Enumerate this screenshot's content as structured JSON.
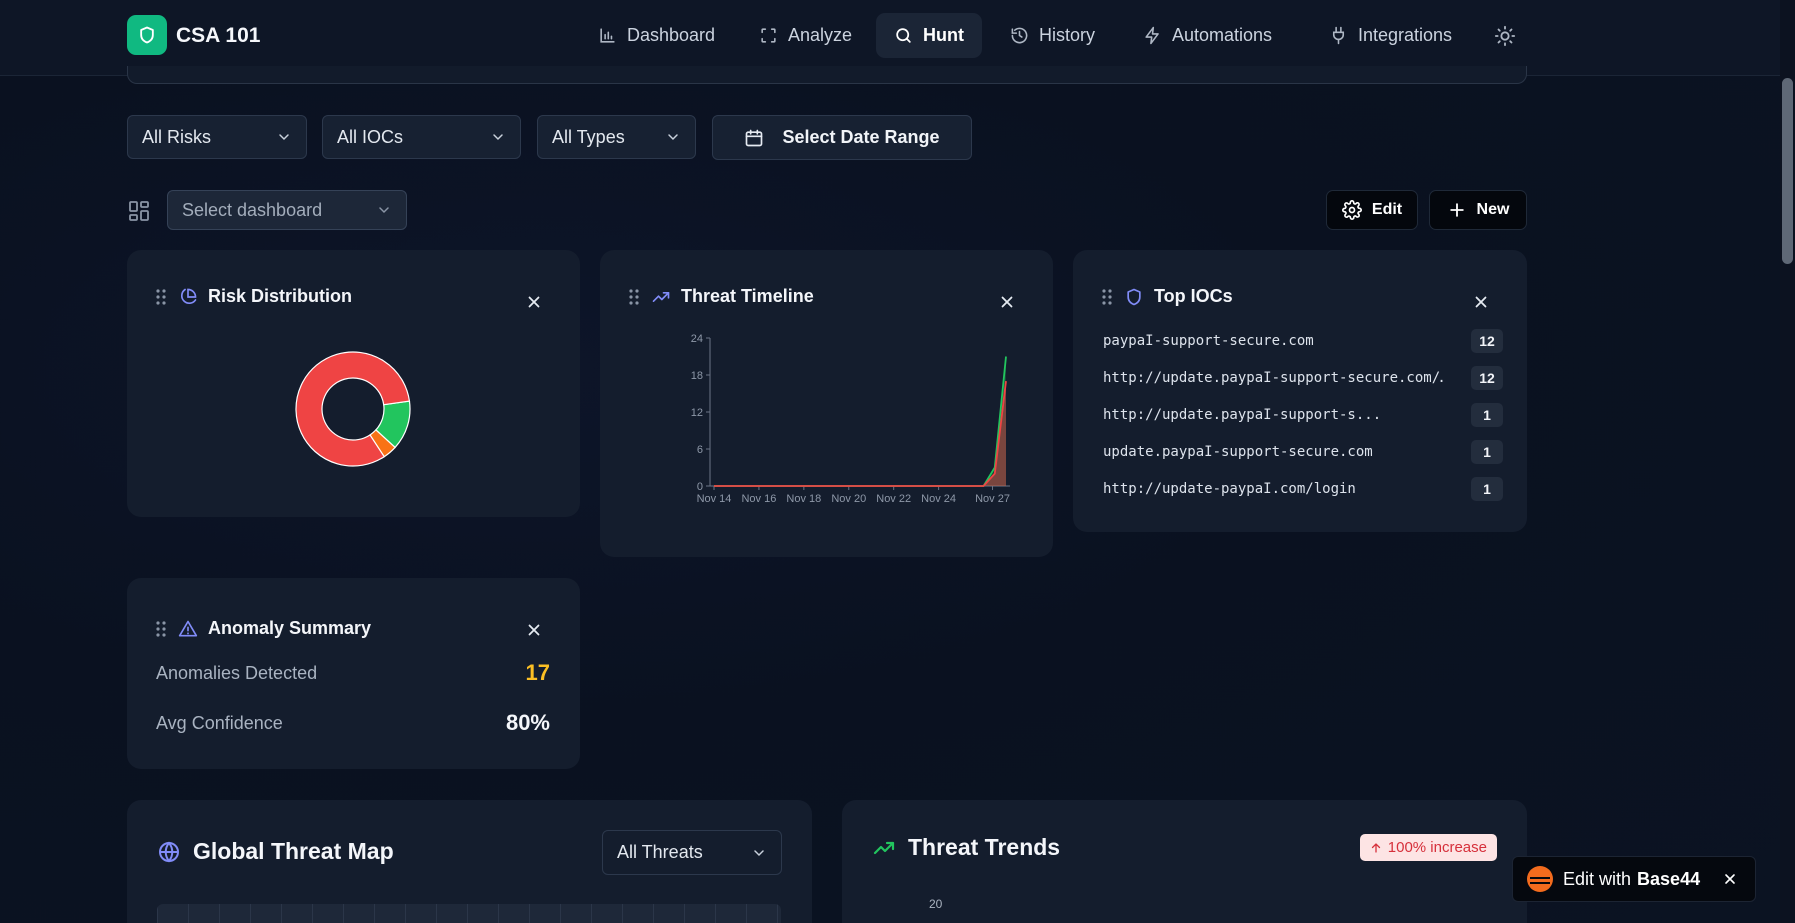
{
  "app": {
    "name": "CSA 101"
  },
  "nav": [
    {
      "label": "Dashboard",
      "icon": "bar-chart-icon"
    },
    {
      "label": "Analyze",
      "icon": "scan-icon"
    },
    {
      "label": "Hunt",
      "icon": "search-icon",
      "active": true
    },
    {
      "label": "History",
      "icon": "history-icon"
    },
    {
      "label": "Automations",
      "icon": "lightning-icon"
    },
    {
      "label": "Integrations",
      "icon": "plug-icon"
    }
  ],
  "filters": {
    "risk": "All Risks",
    "ioc": "All IOCs",
    "type": "All Types",
    "date": "Select Date Range"
  },
  "dashboard": {
    "select_placeholder": "Select dashboard",
    "edit_label": "Edit",
    "new_label": "New"
  },
  "widgets": {
    "risk": {
      "title": "Risk Distribution",
      "colors": {
        "high": "#ef4444",
        "medium": "#f97316",
        "low": "#22c55e"
      }
    },
    "timeline": {
      "title": "Threat Timeline"
    },
    "top_iocs": {
      "title": "Top IOCs",
      "items": [
        {
          "value": "paypaI-support-secure.com",
          "count": "12"
        },
        {
          "value": "http://update.paypaI-support-secure.com/…",
          "count": "12"
        },
        {
          "value": "http://update.paypaI-support-s...",
          "count": "1"
        },
        {
          "value": "update.paypaI-support-secure.com",
          "count": "1"
        },
        {
          "value": "http://update-paypaI.com/login",
          "count": "1"
        }
      ]
    },
    "anomaly": {
      "title": "Anomaly Summary",
      "detected_label": "Anomalies Detected",
      "detected_value": "17",
      "confidence_label": "Avg Confidence",
      "confidence_value": "80%"
    }
  },
  "global_map": {
    "title": "Global Threat Map",
    "filter": "All Threats"
  },
  "trends": {
    "title": "Threat Trends",
    "badge": "100% increase",
    "y_tick": "20"
  },
  "edit_with": {
    "label": "Edit with",
    "brand": "Base44"
  },
  "chart_data": [
    {
      "type": "pie",
      "labels": [
        "",
        "",
        ""
      ],
      "values": [
        82,
        4,
        14
      ],
      "colors": [
        "#ef4444",
        "#f97316",
        "#22c55e"
      ]
    },
    {
      "type": "area",
      "categories": [
        "Nov 14",
        "Nov 16",
        "Nov 18",
        "Nov 20",
        "Nov 22",
        "Nov 24",
        "Nov 27"
      ],
      "yticks": [
        "0",
        "6",
        "12",
        "18",
        "24"
      ],
      "ylim": [
        0,
        24
      ],
      "x": [
        14,
        15,
        16,
        17,
        18,
        19,
        20,
        21,
        22,
        23,
        24,
        25,
        26,
        26.5,
        27
      ],
      "series": [
        {
          "values": [
            0,
            0,
            0,
            0,
            0,
            0,
            0,
            0,
            0,
            0,
            0,
            0,
            0,
            3,
            21
          ],
          "color": "#22c55e"
        },
        {
          "values": [
            0,
            0,
            0,
            0,
            0,
            0,
            0,
            0,
            0,
            0,
            0,
            0,
            0,
            2,
            17
          ],
          "color": "#ef4444"
        }
      ]
    }
  ]
}
